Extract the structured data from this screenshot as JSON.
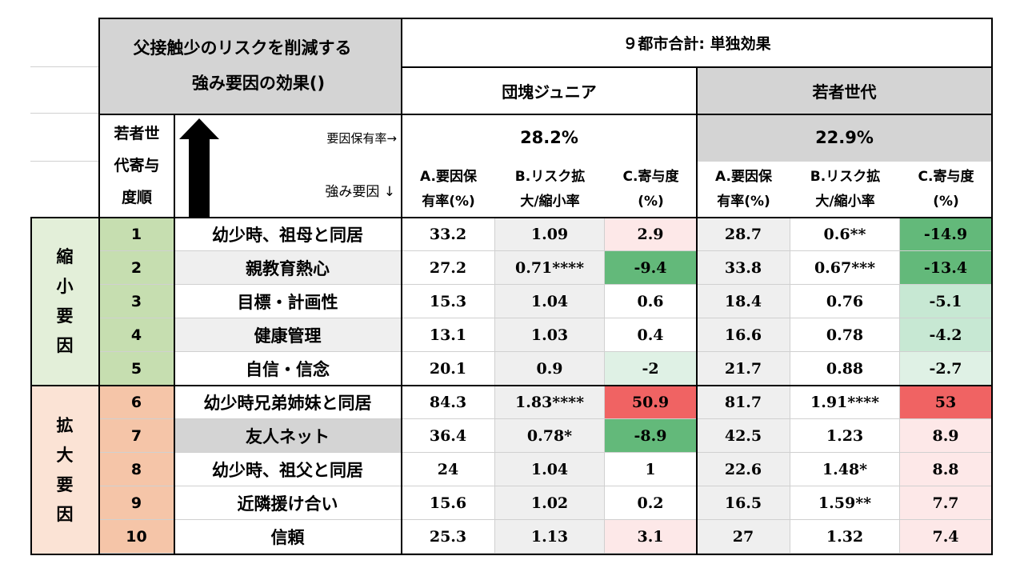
{
  "header": {
    "title_line1": "父接触少のリスクを削減する",
    "title_line2": "強み要因の効果()",
    "summary": "９都市合計: 単独効果",
    "group_a": "団塊ジュニア",
    "group_b": "若者世代",
    "rank_col": [
      "若者世",
      "代寄与",
      "度順"
    ],
    "possession_label": "要因保有率→",
    "strength_label": "強み要因 ↓",
    "rate_a": "28.2%",
    "rate_b": "22.9%",
    "col_a": [
      "A.要因保",
      "有率(%)"
    ],
    "col_b": [
      "B.リスク拡",
      "大/縮小率"
    ],
    "col_c": [
      "C.寄与度",
      "(%)"
    ]
  },
  "sections": {
    "reduce_label": [
      "縮",
      "小",
      "要",
      "因"
    ],
    "expand_label": [
      "拡",
      "大",
      "要",
      "因"
    ]
  },
  "colors": {
    "reduce_rank_bg": "#c6deb0",
    "reduce_side_bg": "#e3efd9",
    "expand_rank_bg": "#f5c5a8",
    "expand_side_bg": "#fbe3d5",
    "strong_green": "#63b97a",
    "light_green": "#c7e8d3",
    "pale_green": "#dff1e5",
    "strong_red": "#f06363",
    "light_pink": "#fde8e8",
    "gray_header": "#d4d4d4",
    "light_gray": "#efefef"
  },
  "rows": [
    {
      "rank": "1",
      "factor": "幼少時、祖母と同居",
      "a1": "33.2",
      "b1": "1.09",
      "c1": "2.9",
      "a2": "28.7",
      "b2": "0.6**",
      "c2": "-14.9"
    },
    {
      "rank": "2",
      "factor": "親教育熱心",
      "a1": "27.2",
      "b1": "0.71****",
      "c1": "-9.4",
      "a2": "33.8",
      "b2": "0.67***",
      "c2": "-13.4"
    },
    {
      "rank": "3",
      "factor": "目標・計画性",
      "a1": "15.3",
      "b1": "1.04",
      "c1": "0.6",
      "a2": "18.4",
      "b2": "0.76",
      "c2": "-5.1"
    },
    {
      "rank": "4",
      "factor": "健康管理",
      "a1": "13.1",
      "b1": "1.03",
      "c1": "0.4",
      "a2": "16.6",
      "b2": "0.78",
      "c2": "-4.2"
    },
    {
      "rank": "5",
      "factor": "自信・信念",
      "a1": "20.1",
      "b1": "0.9",
      "c1": "-2",
      "a2": "21.7",
      "b2": "0.88",
      "c2": "-2.7"
    },
    {
      "rank": "6",
      "factor": "幼少時兄弟姉妹と同居",
      "a1": "84.3",
      "b1": "1.83****",
      "c1": "50.9",
      "a2": "81.7",
      "b2": "1.91****",
      "c2": "53"
    },
    {
      "rank": "7",
      "factor": "友人ネット",
      "a1": "36.4",
      "b1": "0.78*",
      "c1": "-8.9",
      "a2": "42.5",
      "b2": "1.23",
      "c2": "8.9"
    },
    {
      "rank": "8",
      "factor": "幼少時、祖父と同居",
      "a1": "24",
      "b1": "1.04",
      "c1": "1",
      "a2": "22.6",
      "b2": "1.48*",
      "c2": "8.8"
    },
    {
      "rank": "9",
      "factor": "近隣援け合い",
      "a1": "15.6",
      "b1": "1.02",
      "c1": "0.2",
      "a2": "16.5",
      "b2": "1.59**",
      "c2": "7.7"
    },
    {
      "rank": "10",
      "factor": "信頼",
      "a1": "25.3",
      "b1": "1.13",
      "c1": "3.1",
      "a2": "27",
      "b2": "1.32",
      "c2": "7.4"
    }
  ]
}
